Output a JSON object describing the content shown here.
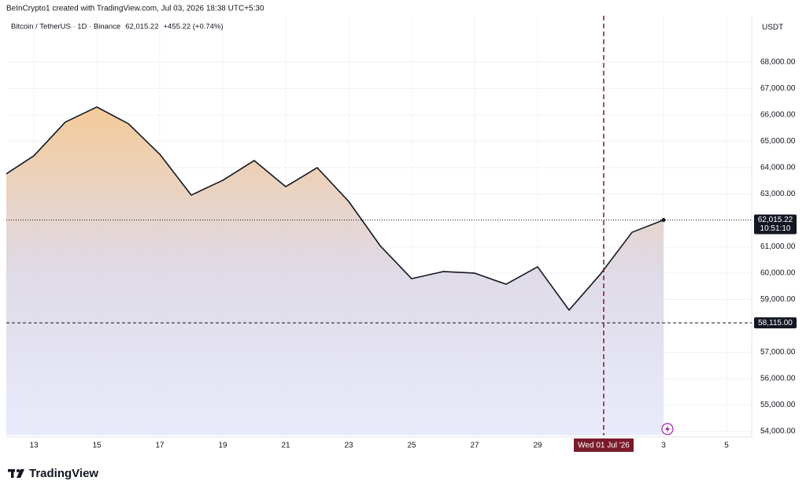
{
  "header": "BeInCrypto1 created with TradingView.com, Jul 03, 2026 18:38 UTC+5:30",
  "chart_data": {
    "type": "area",
    "symbol": "Bitcoin / TetherUS · 1D · Binance",
    "price": "62,015.22",
    "change": "+455.22 (+0.74%)",
    "currency": "USDT",
    "categories": [
      null,
      "13",
      null,
      "15",
      null,
      "17",
      null,
      "19",
      null,
      "21",
      null,
      "23",
      null,
      "25",
      null,
      "27",
      null,
      "29",
      null,
      null,
      null,
      "3",
      null,
      "5"
    ],
    "values": [
      63670,
      64450,
      65730,
      66300,
      65670,
      64510,
      62960,
      63520,
      64270,
      63280,
      64000,
      62720,
      61040,
      59790,
      60060,
      60000,
      59580,
      60240,
      58600,
      59970,
      61550,
      62015.22,
      null,
      null
    ],
    "color": "#131722",
    "ylim": [
      53850,
      69015
    ],
    "yticks": [
      {
        "value": 54000,
        "label": "54,000.00"
      },
      {
        "value": 55000,
        "label": "55,000.00"
      },
      {
        "value": 56000,
        "label": "56,000.00"
      },
      {
        "value": 57000,
        "label": "57,000.00"
      },
      {
        "value": 59000,
        "label": "59,000.00"
      },
      {
        "value": 60000,
        "label": "60,000.00"
      },
      {
        "value": 61000,
        "label": "61,000.00"
      },
      {
        "value": 63000,
        "label": "63,000.00"
      },
      {
        "value": 64000,
        "label": "64,000.00"
      },
      {
        "value": 65000,
        "label": "65,000.00"
      },
      {
        "value": 66000,
        "label": "66,000.00"
      },
      {
        "value": 67000,
        "label": "67,000.00"
      },
      {
        "value": 68000,
        "label": "68,000.00"
      }
    ],
    "grid": true,
    "last_price": {
      "value": 62015.22,
      "label": "62,015.22",
      "countdown": "10:51:10"
    },
    "level": {
      "value": 58115,
      "label": "58,115.00"
    },
    "crosshair": {
      "index": 19,
      "label": "Wed 01 Jul '26"
    }
  },
  "logo": "TradingView"
}
